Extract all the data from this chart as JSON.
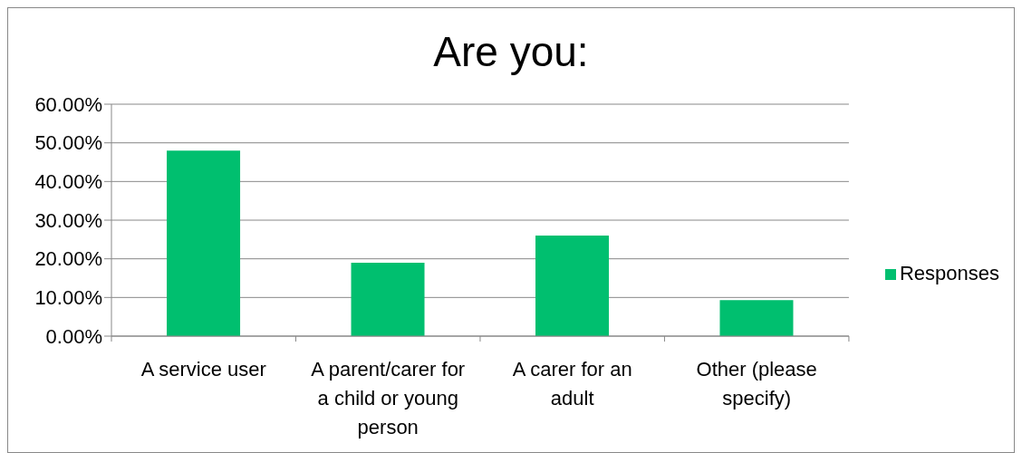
{
  "chart_data": {
    "type": "bar",
    "title": "Are you:",
    "categories": [
      "A service user",
      "A parent/carer for a child or young person",
      "A carer for an adult",
      "Other (please specify)"
    ],
    "series": [
      {
        "name": "Responses",
        "color": "#00bf6f",
        "values": [
          48.0,
          19.0,
          26.0,
          9.3
        ]
      }
    ],
    "ylim": [
      0,
      60
    ],
    "yticks": [
      {
        "value": 0,
        "label": "0.00%"
      },
      {
        "value": 10,
        "label": "10.00%"
      },
      {
        "value": 20,
        "label": "20.00%"
      },
      {
        "value": 30,
        "label": "30.00%"
      },
      {
        "value": 40,
        "label": "40.00%"
      },
      {
        "value": 50,
        "label": "50.00%"
      },
      {
        "value": 60,
        "label": "60.00%"
      }
    ],
    "grid": "y",
    "legend": "right"
  }
}
